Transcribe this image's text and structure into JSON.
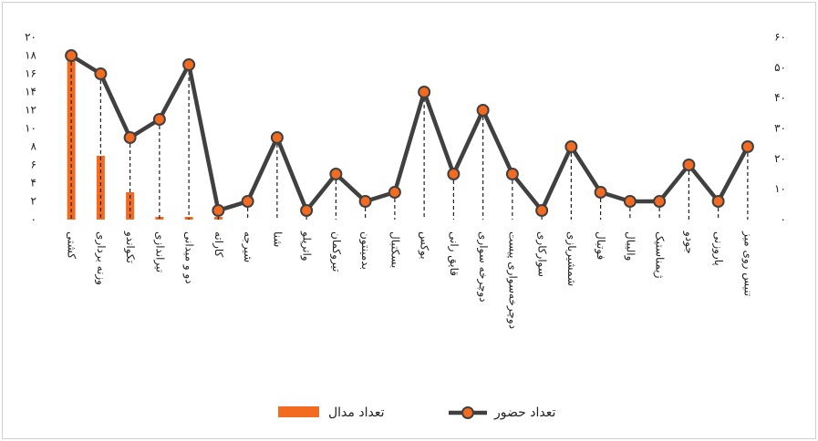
{
  "chart_data": {
    "type": "bar_line",
    "categories": [
      "کشتی",
      "وزنه برداری",
      "تکواندو",
      "تیراندازی",
      "دو و میدانی",
      "کاراته",
      "شیرجه",
      "شنا",
      "واترپلو",
      "تیروکمان",
      "بدمینتون",
      "بسکتبال",
      "بوکس",
      "قایق رانی",
      "دوچرخه سواری",
      "دوچرخه‌سواری پیست",
      "سوارکاری",
      "شمشیربازی",
      "فوتبال",
      "والیبال",
      "ژیمناستیک",
      "جودو",
      "پاروزنی",
      "تنیس روی میز"
    ],
    "series": [
      {
        "name": "تعداد مدال",
        "type": "bar",
        "color": "#f26b21",
        "axis": "y",
        "values": [
          18,
          7,
          3,
          0.3,
          0.3,
          0.3,
          0,
          0,
          0,
          0,
          0,
          0,
          0,
          0,
          0,
          0,
          0,
          0,
          0,
          0,
          0,
          0,
          0,
          0
        ]
      },
      {
        "name": "تعداد حضور",
        "type": "line",
        "color": "#404040",
        "marker_color": "#f26b21",
        "axis": "y2",
        "values": [
          54,
          48,
          27,
          33,
          51,
          3,
          6,
          27,
          3,
          15,
          6,
          9,
          42,
          15,
          36,
          15,
          3,
          24,
          9,
          6,
          6,
          18,
          6,
          24
        ]
      }
    ],
    "ylim": [
      0,
      20
    ],
    "yticks": [
      {
        "value": 0,
        "label": "۰"
      },
      {
        "value": 2,
        "label": "۲"
      },
      {
        "value": 4,
        "label": "۴"
      },
      {
        "value": 6,
        "label": "۶"
      },
      {
        "value": 8,
        "label": "۸"
      },
      {
        "value": 10,
        "label": "۱۰"
      },
      {
        "value": 12,
        "label": "۱۲"
      },
      {
        "value": 14,
        "label": "۱۴"
      },
      {
        "value": 16,
        "label": "۱۶"
      },
      {
        "value": 18,
        "label": "۱۸"
      },
      {
        "value": 20,
        "label": "۲۰"
      }
    ],
    "y2lim": [
      0,
      60
    ],
    "y2ticks": [
      {
        "value": 0,
        "label": "۰"
      },
      {
        "value": 10,
        "label": "۱۰"
      },
      {
        "value": 20,
        "label": "۲۰"
      },
      {
        "value": 30,
        "label": "۳۰"
      },
      {
        "value": 40,
        "label": "۴۰"
      },
      {
        "value": 50,
        "label": "۵۰"
      },
      {
        "value": 60,
        "label": "۶۰"
      }
    ],
    "grid": false,
    "legend": "bottom",
    "drop_lines": true
  }
}
